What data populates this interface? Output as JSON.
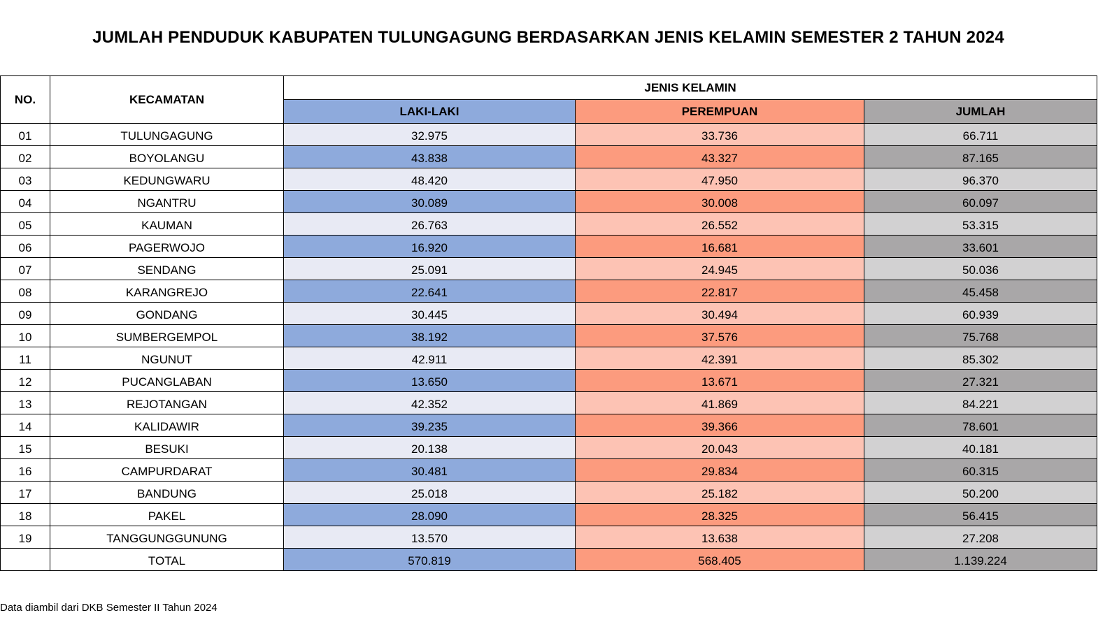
{
  "title": "JUMLAH PENDUDUK KABUPATEN TULUNGAGUNG BERDASARKAN JENIS KELAMIN SEMESTER 2 TAHUN 2024",
  "headers": {
    "no": "NO.",
    "kecamatan": "KECAMATAN",
    "group": "JENIS KELAMIN",
    "laki": "LAKI-LAKI",
    "perempuan": "PEREMPUAN",
    "jumlah": "JUMLAH"
  },
  "colors": {
    "laki_dark": "#8eaadc",
    "laki_light": "#e8eaf4",
    "perempuan_dark": "#fc9b7e",
    "perempuan_light": "#fdc3b4",
    "jumlah_dark": "#a9a7a8",
    "jumlah_light": "#d2d1d2"
  },
  "rows": [
    {
      "no": "01",
      "kecamatan": "TULUNGAGUNG",
      "laki": "32.975",
      "perempuan": "33.736",
      "jumlah": "66.711"
    },
    {
      "no": "02",
      "kecamatan": "BOYOLANGU",
      "laki": "43.838",
      "perempuan": "43.327",
      "jumlah": "87.165"
    },
    {
      "no": "03",
      "kecamatan": "KEDUNGWARU",
      "laki": "48.420",
      "perempuan": "47.950",
      "jumlah": "96.370"
    },
    {
      "no": "04",
      "kecamatan": "NGANTRU",
      "laki": "30.089",
      "perempuan": "30.008",
      "jumlah": "60.097"
    },
    {
      "no": "05",
      "kecamatan": "KAUMAN",
      "laki": "26.763",
      "perempuan": "26.552",
      "jumlah": "53.315"
    },
    {
      "no": "06",
      "kecamatan": "PAGERWOJO",
      "laki": "16.920",
      "perempuan": "16.681",
      "jumlah": "33.601"
    },
    {
      "no": "07",
      "kecamatan": "SENDANG",
      "laki": "25.091",
      "perempuan": "24.945",
      "jumlah": "50.036"
    },
    {
      "no": "08",
      "kecamatan": "KARANGREJO",
      "laki": "22.641",
      "perempuan": "22.817",
      "jumlah": "45.458"
    },
    {
      "no": "09",
      "kecamatan": "GONDANG",
      "laki": "30.445",
      "perempuan": "30.494",
      "jumlah": "60.939"
    },
    {
      "no": "10",
      "kecamatan": "SUMBERGEMPOL",
      "laki": "38.192",
      "perempuan": "37.576",
      "jumlah": "75.768"
    },
    {
      "no": "11",
      "kecamatan": "NGUNUT",
      "laki": "42.911",
      "perempuan": "42.391",
      "jumlah": "85.302"
    },
    {
      "no": "12",
      "kecamatan": "PUCANGLABAN",
      "laki": "13.650",
      "perempuan": "13.671",
      "jumlah": "27.321"
    },
    {
      "no": "13",
      "kecamatan": "REJOTANGAN",
      "laki": "42.352",
      "perempuan": "41.869",
      "jumlah": "84.221"
    },
    {
      "no": "14",
      "kecamatan": "KALIDAWIR",
      "laki": "39.235",
      "perempuan": "39.366",
      "jumlah": "78.601"
    },
    {
      "no": "15",
      "kecamatan": "BESUKI",
      "laki": "20.138",
      "perempuan": "20.043",
      "jumlah": "40.181"
    },
    {
      "no": "16",
      "kecamatan": "CAMPURDARAT",
      "laki": "30.481",
      "perempuan": "29.834",
      "jumlah": "60.315"
    },
    {
      "no": "17",
      "kecamatan": "BANDUNG",
      "laki": "25.018",
      "perempuan": "25.182",
      "jumlah": "50.200"
    },
    {
      "no": "18",
      "kecamatan": "PAKEL",
      "laki": "28.090",
      "perempuan": "28.325",
      "jumlah": "56.415"
    },
    {
      "no": "19",
      "kecamatan": "TANGGUNGGUNUNG",
      "laki": "13.570",
      "perempuan": "13.638",
      "jumlah": "27.208"
    }
  ],
  "total": {
    "label": "TOTAL",
    "laki": "570.819",
    "perempuan": "568.405",
    "jumlah": "1.139.224"
  },
  "footnote": "Data diambil dari DKB Semester II Tahun 2024"
}
